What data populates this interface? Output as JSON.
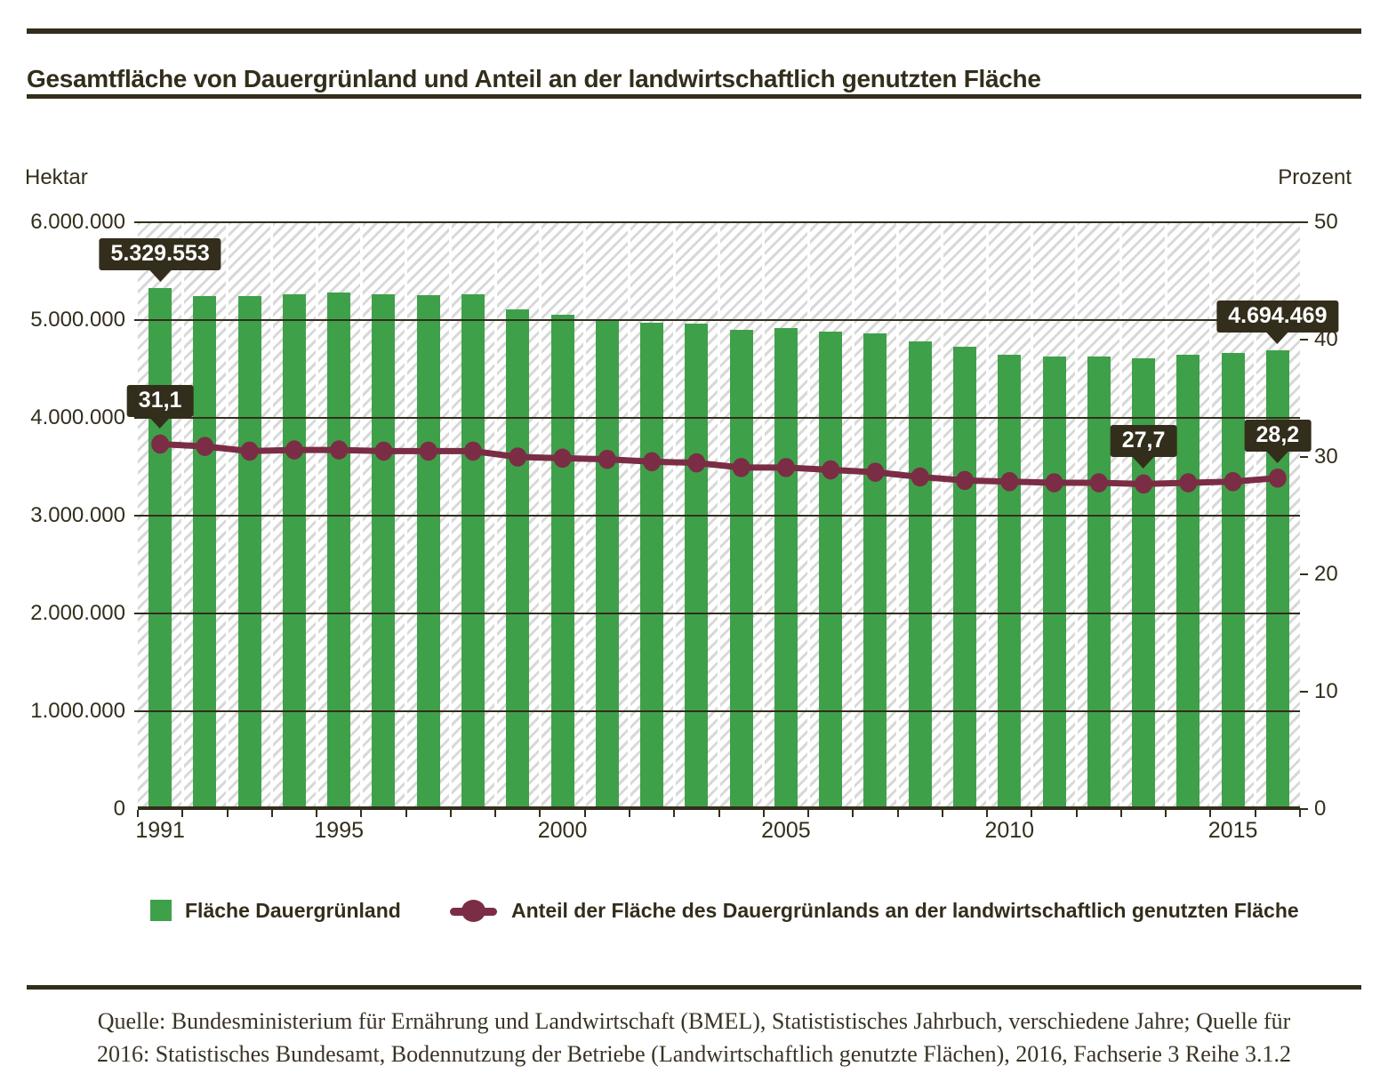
{
  "header": {
    "title": "Gesamtfläche von Dauergrünland und Anteil an der landwirtschaftlich genutzten Fläche"
  },
  "axes": {
    "left": {
      "title": "Hektar",
      "ticks": [
        {
          "label": "6.000.000",
          "value": 6000000
        },
        {
          "label": "5.000.000",
          "value": 5000000
        },
        {
          "label": "4.000.000",
          "value": 4000000
        },
        {
          "label": "3.000.000",
          "value": 3000000
        },
        {
          "label": "2.000.000",
          "value": 2000000
        },
        {
          "label": "1.000.000",
          "value": 1000000
        },
        {
          "label": "0",
          "value": 0
        }
      ],
      "range": [
        0,
        6000000
      ]
    },
    "right": {
      "title": "Prozent",
      "ticks": [
        {
          "label": "50",
          "value": 50
        },
        {
          "label": "40",
          "value": 40
        },
        {
          "label": "30",
          "value": 30
        },
        {
          "label": "20",
          "value": 20
        },
        {
          "label": "10",
          "value": 10
        },
        {
          "label": "0",
          "value": 0
        }
      ],
      "range": [
        0,
        50
      ]
    },
    "bottom": {
      "labels": [
        {
          "label": "1991",
          "index": 0
        },
        {
          "label": "1995",
          "index": 4
        },
        {
          "label": "2000",
          "index": 9
        },
        {
          "label": "2005",
          "index": 14
        },
        {
          "label": "2010",
          "index": 19
        },
        {
          "label": "2015",
          "index": 24
        }
      ]
    }
  },
  "chart_data": {
    "type": "bar+line",
    "categories": [
      1991,
      1992,
      1993,
      1994,
      1995,
      1996,
      1997,
      1998,
      1999,
      2000,
      2001,
      2002,
      2003,
      2004,
      2005,
      2006,
      2007,
      2008,
      2009,
      2010,
      2011,
      2012,
      2013,
      2014,
      2015,
      2016
    ],
    "series": [
      {
        "name": "Fläche Dauergrünland",
        "type": "bar",
        "axis": "left",
        "unit": "Hektar",
        "color": "#3FA04A",
        "values": [
          5329553,
          5250000,
          5243000,
          5260000,
          5285000,
          5262000,
          5258000,
          5260000,
          5113000,
          5051000,
          5009000,
          4973000,
          4964000,
          4900000,
          4917000,
          4881000,
          4863000,
          4781000,
          4727000,
          4645000,
          4627000,
          4626000,
          4608000,
          4645000,
          4663000,
          4694469
        ]
      },
      {
        "name": "Anteil der Fläche des Dauergrünlands an der landwirtschaftlich genutzten Fläche",
        "type": "line",
        "axis": "right",
        "unit": "Prozent",
        "color": "#7B2D45",
        "values": [
          31.1,
          30.9,
          30.5,
          30.6,
          30.6,
          30.5,
          30.5,
          30.5,
          30.0,
          29.9,
          29.8,
          29.6,
          29.5,
          29.1,
          29.1,
          28.9,
          28.7,
          28.3,
          28.0,
          27.9,
          27.8,
          27.8,
          27.7,
          27.8,
          27.9,
          28.2
        ]
      }
    ],
    "annotations": [
      {
        "series": 0,
        "year": 1991,
        "label": "5.329.553"
      },
      {
        "series": 0,
        "year": 2016,
        "label": "4.694.469"
      },
      {
        "series": 1,
        "year": 1991,
        "label": "31,1"
      },
      {
        "series": 1,
        "year": 2013,
        "label": "27,7"
      },
      {
        "series": 1,
        "year": 2016,
        "label": "28,2"
      }
    ],
    "title": "Gesamtfläche von Dauergrünland und Anteil an der landwirtschaftlich genutzten Fläche",
    "ylim_left": [
      0,
      6000000
    ],
    "ylim_right": [
      0,
      50
    ],
    "grid": true,
    "legend_position": "bottom"
  },
  "legend": {
    "items": [
      {
        "label": "Fläche Dauergrünland",
        "swatch": "bar"
      },
      {
        "label": "Anteil der Fläche des Dauergrünlands an der landwirtschaftlich genutzten Fläche",
        "swatch": "line-dot"
      }
    ]
  },
  "source": {
    "line1": "Quelle: Bundesministerium für Ernährung und Landwirtschaft (BMEL), Statististisches Jahrbuch, verschiedene Jahre; Quelle für",
    "line2": "2016: Statistisches Bundesamt, Bodennutzung der Betriebe (Landwirtschaftlich genutzte Flächen), 2016, Fachserie 3 Reihe 3.1.2"
  },
  "colors": {
    "ink": "#332E1C",
    "green": "#3FA04A",
    "maroon": "#7B2D45",
    "hatch_gray": "#D8D8D8",
    "background": "#FFFFFF"
  }
}
